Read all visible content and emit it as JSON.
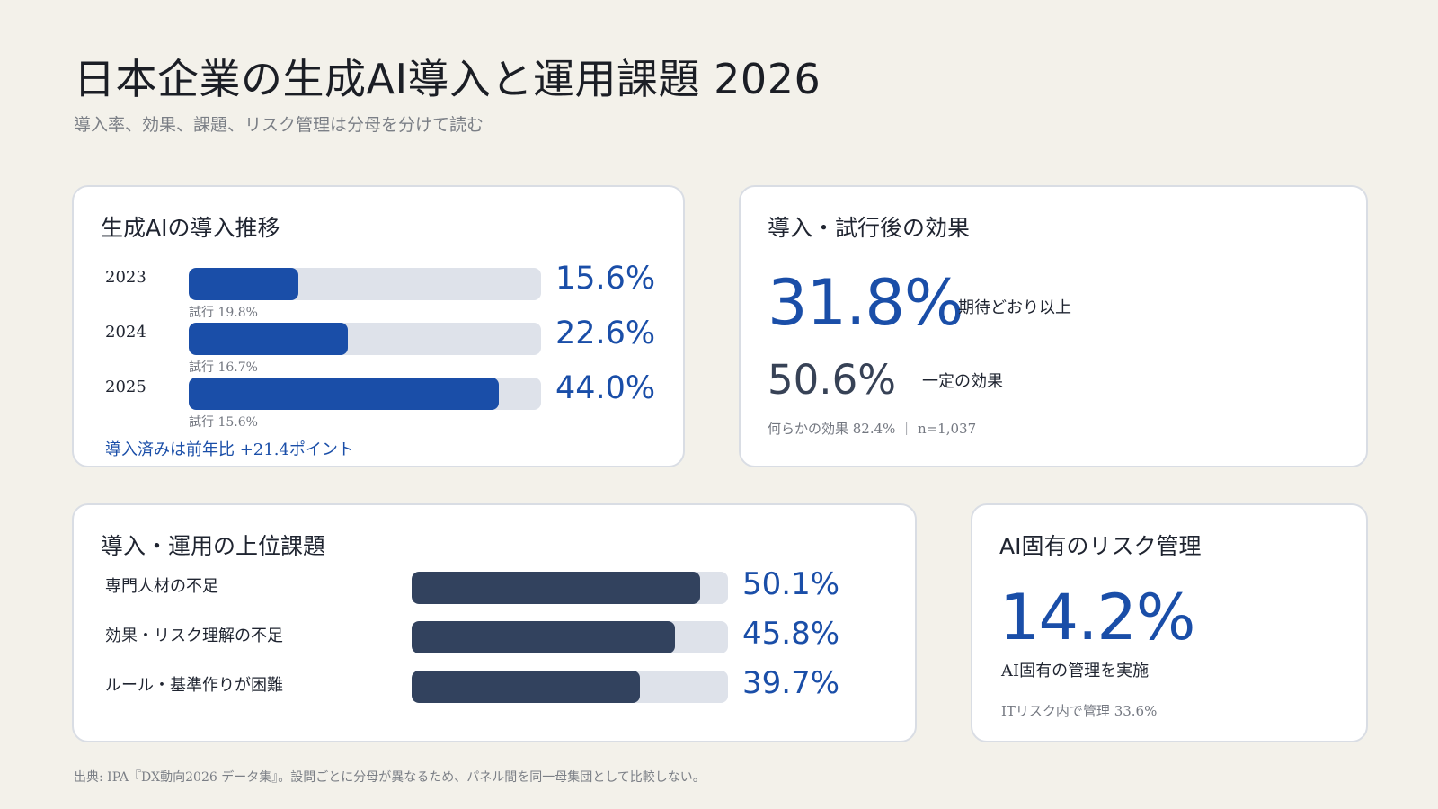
{
  "title": "日本企業の生成AI導入と運用課題 2026",
  "subtitle": "導入率、効果、課題、リスク管理は分母を分けて読む",
  "colors": {
    "accent": "#1a4ea8",
    "issue_bar": "#32425e",
    "track": "#dee2ea",
    "background": "#f3f1ea"
  },
  "chart_data": [
    {
      "type": "bar",
      "title": "生成AIの導入推移",
      "categories": [
        "2023",
        "2024",
        "2025"
      ],
      "series": [
        {
          "name": "",
          "values": [
            15.6,
            22.6,
            44.0
          ]
        }
      ],
      "value_labels": [
        "15.6%",
        "22.6%",
        "44.0%"
      ],
      "annotations": [
        "試行 19.8%",
        "試行 16.7%",
        "試行 15.6%"
      ],
      "note": "導入済みは前年比 +21.4ポイント",
      "ylim": [
        0,
        50
      ]
    },
    {
      "type": "table",
      "title": "導入・試行後の効果",
      "primary": {
        "value": "31.8%",
        "label": "期待どおり以上"
      },
      "secondary": {
        "value": "50.6%",
        "label": "一定の効果"
      },
      "footnote": "何らかの効果 82.4% ｜ n=1,037"
    },
    {
      "type": "bar",
      "title": "導入・運用の上位課題",
      "categories": [
        "専門人材の不足",
        "効果・リスク理解の不足",
        "ルール・基準作りが困難"
      ],
      "series": [
        {
          "name": "",
          "values": [
            50.1,
            45.8,
            39.7
          ]
        }
      ],
      "value_labels": [
        "50.1%",
        "45.8%",
        "39.7%"
      ],
      "ylim": [
        0,
        55
      ]
    },
    {
      "type": "table",
      "title": "AI固有のリスク管理",
      "primary": {
        "value": "14.2%",
        "label": "AI固有の管理を実施"
      },
      "footnote": "ITリスク内で管理 33.6%"
    }
  ],
  "source": "出典: IPA『DX動向2026 データ集』。設問ごとに分母が異なるため、パネル間を同一母集団として比較しない。"
}
